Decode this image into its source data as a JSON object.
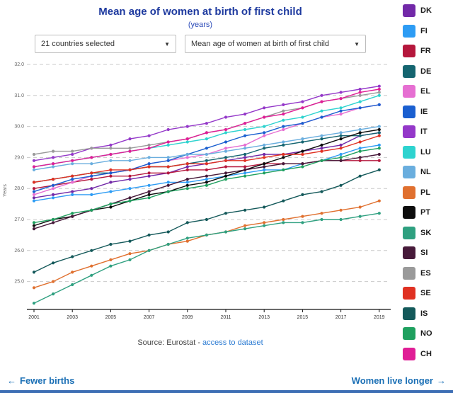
{
  "header": {
    "title": "Mean age of women at birth of first child",
    "subtitle": "(years)"
  },
  "controls": {
    "countries_dropdown": {
      "value": "21 countries selected"
    },
    "indicator_dropdown": {
      "value": "Mean age of women at birth of first child"
    }
  },
  "chart_data": {
    "type": "line",
    "title": "Mean age of women at birth of first child",
    "xlabel": "",
    "ylabel": "Years",
    "x": [
      2001,
      2002,
      2003,
      2004,
      2005,
      2006,
      2007,
      2008,
      2009,
      2010,
      2011,
      2012,
      2013,
      2014,
      2015,
      2016,
      2017,
      2018,
      2019
    ],
    "xticks": [
      2001,
      2003,
      2005,
      2007,
      2009,
      2011,
      2013,
      2015,
      2017,
      2019
    ],
    "yticks": [
      25,
      26,
      27,
      28,
      29,
      30,
      31,
      32
    ],
    "ylim": [
      24.1,
      32.0
    ],
    "grid": true,
    "legend_position": "right",
    "series": [
      {
        "name": "DK",
        "color": "#7229a8",
        "values": [
          27.7,
          27.8,
          27.9,
          28.0,
          28.2,
          28.3,
          28.4,
          28.5,
          28.7,
          28.8,
          28.9,
          29.0,
          29.1,
          29.1,
          29.2,
          29.3,
          29.4,
          29.7,
          29.8
        ]
      },
      {
        "name": "FI",
        "color": "#2d9cf4",
        "values": [
          27.6,
          27.7,
          27.8,
          27.8,
          27.9,
          28.0,
          28.1,
          28.2,
          28.2,
          28.3,
          28.4,
          28.5,
          28.6,
          28.6,
          28.8,
          28.9,
          29.1,
          29.3,
          29.4
        ]
      },
      {
        "name": "FR",
        "color": "#b5173c",
        "values": [
          28.0,
          28.1,
          28.2,
          28.3,
          28.4,
          28.4,
          28.5,
          28.5,
          28.6,
          28.6,
          28.7,
          28.7,
          28.8,
          28.8,
          28.8,
          28.9,
          28.9,
          28.9,
          28.9
        ]
      },
      {
        "name": "DE",
        "color": "#156570",
        "values": [
          28.2,
          28.3,
          28.4,
          28.5,
          28.5,
          28.6,
          28.7,
          28.7,
          28.8,
          28.9,
          29.0,
          29.1,
          29.3,
          29.4,
          29.5,
          29.6,
          29.7,
          29.7,
          29.8
        ]
      },
      {
        "name": "EL",
        "color": "#e66fd2",
        "values": [
          27.8,
          28.0,
          28.2,
          28.4,
          28.5,
          28.6,
          28.8,
          28.9,
          29.0,
          29.1,
          29.3,
          29.4,
          29.7,
          29.9,
          30.1,
          30.3,
          30.4,
          30.6,
          30.7
        ]
      },
      {
        "name": "IE",
        "color": "#1a5fd0",
        "values": [
          27.9,
          28.1,
          28.3,
          28.4,
          28.5,
          28.6,
          28.8,
          28.9,
          29.1,
          29.3,
          29.5,
          29.7,
          29.8,
          30.0,
          30.1,
          30.3,
          30.5,
          30.6,
          30.7
        ]
      },
      {
        "name": "IT",
        "color": "#9438c9",
        "values": [
          28.9,
          29.0,
          29.1,
          29.3,
          29.4,
          29.6,
          29.7,
          29.9,
          30.0,
          30.1,
          30.3,
          30.4,
          30.6,
          30.7,
          30.8,
          31.0,
          31.1,
          31.2,
          31.3
        ]
      },
      {
        "name": "LU",
        "color": "#2ed3cf",
        "values": [
          28.7,
          28.8,
          28.9,
          29.0,
          29.1,
          29.2,
          29.3,
          29.4,
          29.5,
          29.6,
          29.8,
          29.9,
          30.0,
          30.2,
          30.3,
          30.5,
          30.6,
          30.8,
          31.0
        ]
      },
      {
        "name": "NL",
        "color": "#6aaede",
        "values": [
          28.6,
          28.7,
          28.8,
          28.8,
          28.9,
          28.9,
          29.0,
          29.0,
          29.1,
          29.1,
          29.2,
          29.3,
          29.4,
          29.5,
          29.6,
          29.7,
          29.8,
          29.9,
          30.0
        ]
      },
      {
        "name": "PL",
        "color": "#e0702f",
        "values": [
          24.8,
          25.0,
          25.3,
          25.5,
          25.7,
          25.9,
          26.0,
          26.2,
          26.3,
          26.5,
          26.6,
          26.8,
          26.9,
          27.0,
          27.1,
          27.2,
          27.3,
          27.4,
          27.6
        ]
      },
      {
        "name": "PT",
        "color": "#0d0d0d",
        "values": [
          26.8,
          27.0,
          27.1,
          27.3,
          27.4,
          27.6,
          27.8,
          27.9,
          28.1,
          28.2,
          28.4,
          28.6,
          28.8,
          29.0,
          29.2,
          29.4,
          29.6,
          29.8,
          29.9
        ]
      },
      {
        "name": "SK",
        "color": "#2fa080",
        "values": [
          24.3,
          24.6,
          24.9,
          25.2,
          25.5,
          25.7,
          26.0,
          26.2,
          26.4,
          26.5,
          26.6,
          26.7,
          26.8,
          26.9,
          26.9,
          27.0,
          27.0,
          27.1,
          27.2
        ]
      },
      {
        "name": "SI",
        "color": "#471a3a",
        "values": [
          26.7,
          26.9,
          27.1,
          27.3,
          27.5,
          27.7,
          27.9,
          28.1,
          28.3,
          28.4,
          28.5,
          28.6,
          28.7,
          28.8,
          28.8,
          28.9,
          28.9,
          29.0,
          29.1
        ]
      },
      {
        "name": "ES",
        "color": "#9a9a9a",
        "values": [
          29.1,
          29.2,
          29.2,
          29.3,
          29.3,
          29.3,
          29.4,
          29.5,
          29.6,
          29.8,
          29.9,
          30.1,
          30.3,
          30.5,
          30.6,
          30.8,
          30.9,
          31.0,
          31.1
        ]
      },
      {
        "name": "SE",
        "color": "#e03122",
        "values": [
          28.2,
          28.3,
          28.4,
          28.5,
          28.6,
          28.6,
          28.7,
          28.7,
          28.8,
          28.8,
          28.9,
          28.9,
          29.0,
          29.1,
          29.1,
          29.2,
          29.3,
          29.5,
          29.7
        ]
      },
      {
        "name": "IS",
        "color": "#14595a",
        "values": [
          25.3,
          25.6,
          25.8,
          26.0,
          26.2,
          26.3,
          26.5,
          26.6,
          26.9,
          27.0,
          27.2,
          27.3,
          27.4,
          27.6,
          27.8,
          27.9,
          28.1,
          28.4,
          28.6
        ]
      },
      {
        "name": "NO",
        "color": "#1fa05f",
        "values": [
          26.9,
          27.0,
          27.2,
          27.3,
          27.5,
          27.6,
          27.7,
          27.9,
          28.0,
          28.1,
          28.3,
          28.4,
          28.5,
          28.6,
          28.7,
          28.9,
          29.0,
          29.2,
          29.3
        ]
      },
      {
        "name": "CH",
        "color": "#e01e96",
        "values": [
          28.7,
          28.8,
          28.9,
          29.0,
          29.1,
          29.2,
          29.3,
          29.5,
          29.6,
          29.8,
          29.9,
          30.1,
          30.3,
          30.4,
          30.6,
          30.8,
          30.9,
          31.1,
          31.2
        ]
      }
    ]
  },
  "source": {
    "prefix": "Source: Eurostat - ",
    "link_label": "access to dataset"
  },
  "footer": {
    "prev_arrow": "←",
    "prev_label": "Fewer births",
    "next_label": "Women live longer",
    "next_arrow": "→"
  }
}
